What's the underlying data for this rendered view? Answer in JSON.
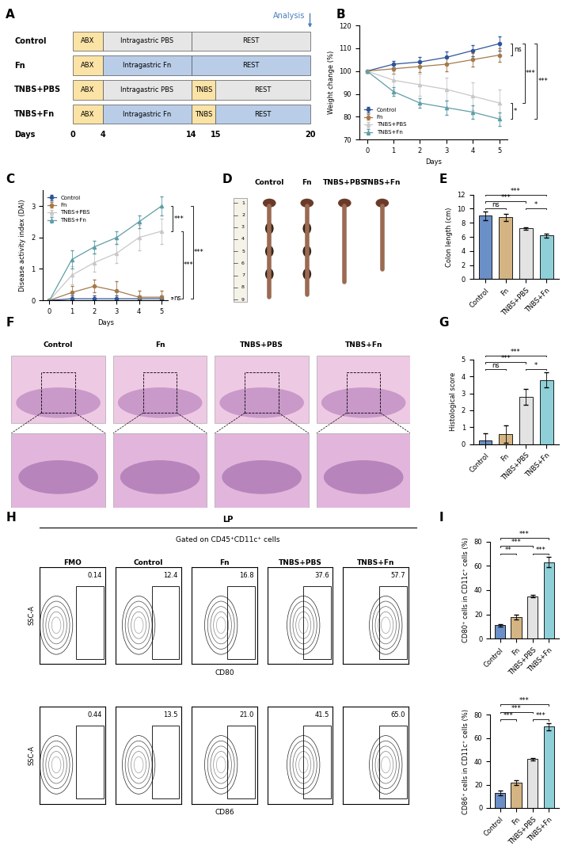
{
  "panel_A": {
    "label": "A",
    "axis_label": "Days",
    "ticks": [
      0,
      4,
      14,
      15,
      20
    ],
    "analysis": "Analysis",
    "rows": [
      {
        "name": "Control",
        "segments": [
          {
            "text": "ABX",
            "start": 0,
            "end": 4,
            "color": "#fbe3a6"
          },
          {
            "text": "Intragastric PBS",
            "start": 4,
            "end": 14,
            "color": "#e6e6e6"
          },
          {
            "text": "REST",
            "start": 14,
            "end": 20,
            "color": "#e6e6e6"
          }
        ]
      },
      {
        "name": "Fn",
        "segments": [
          {
            "text": "ABX",
            "start": 0,
            "end": 4,
            "color": "#fbe3a6"
          },
          {
            "text": "Intragastric Fn",
            "start": 4,
            "end": 14,
            "color": "#b9cde8"
          },
          {
            "text": "REST",
            "start": 14,
            "end": 20,
            "color": "#b9cde8"
          }
        ]
      },
      {
        "name": "TNBS+PBS",
        "segments": [
          {
            "text": "ABX",
            "start": 0,
            "end": 4,
            "color": "#fbe3a6"
          },
          {
            "text": "Intragastric PBS",
            "start": 4,
            "end": 14,
            "color": "#e6e6e6"
          },
          {
            "text": "TNBS",
            "start": 14,
            "end": 15,
            "color": "#fbe3a6"
          },
          {
            "text": "REST",
            "start": 15,
            "end": 20,
            "color": "#e6e6e6"
          }
        ]
      },
      {
        "name": "TNBS+Fn",
        "segments": [
          {
            "text": "ABX",
            "start": 0,
            "end": 4,
            "color": "#fbe3a6"
          },
          {
            "text": "Intragastric Fn",
            "start": 4,
            "end": 14,
            "color": "#b9cde8"
          },
          {
            "text": "TNBS",
            "start": 14,
            "end": 15,
            "color": "#fbe3a6"
          },
          {
            "text": "REST",
            "start": 15,
            "end": 20,
            "color": "#b9cde8"
          }
        ]
      }
    ]
  },
  "chart_data": [
    {
      "panel": "B",
      "type": "line",
      "x": [
        0,
        1,
        2,
        3,
        4,
        5
      ],
      "x_label": "Days",
      "y_label": "Weight change (%)",
      "xlim": [
        -0.3,
        5.3
      ],
      "xticks": [
        0,
        1,
        2,
        3,
        4,
        5
      ],
      "ylim": [
        70,
        120
      ],
      "yticks": [
        70,
        80,
        90,
        100,
        110,
        120
      ],
      "legend": "lower left",
      "series": [
        {
          "name": "Control",
          "color": "#2f5597",
          "marker": "circle",
          "values": [
            100,
            103,
            104,
            106,
            109,
            112
          ],
          "errors": [
            0,
            1.5,
            2,
            2.5,
            2.5,
            3
          ]
        },
        {
          "name": "Fn",
          "color": "#a47a4c",
          "marker": "circle",
          "values": [
            100,
            101,
            102,
            103,
            105,
            107
          ],
          "errors": [
            0,
            2,
            2.5,
            3,
            3,
            3
          ]
        },
        {
          "name": "TNBS+PBS",
          "color": "#c8c8c8",
          "marker": "triangle",
          "values": [
            100,
            96,
            94,
            92,
            89,
            86
          ],
          "errors": [
            0,
            4,
            5,
            5,
            6,
            6
          ]
        },
        {
          "name": "TNBS+Fn",
          "color": "#5f9ea8",
          "marker": "triangle",
          "values": [
            100,
            91,
            86,
            84,
            82,
            79
          ],
          "errors": [
            0,
            2,
            2,
            3,
            3,
            3
          ]
        }
      ],
      "annotations": [
        {
          "text": "ns",
          "between": [
            0,
            1
          ]
        },
        {
          "text": "*",
          "between": [
            2,
            3
          ]
        },
        {
          "text": "***",
          "between": [
            0,
            2
          ]
        },
        {
          "text": "***",
          "between": [
            0,
            3
          ]
        }
      ]
    },
    {
      "panel": "C",
      "type": "line",
      "x": [
        0,
        1,
        2,
        3,
        4,
        5
      ],
      "x_label": "Days",
      "y_label": "Disease activity index (DAI)",
      "xlim": [
        -0.3,
        5.3
      ],
      "xticks": [
        0,
        1,
        2,
        3,
        4,
        5
      ],
      "ylim": [
        0,
        3.5
      ],
      "yticks": [
        0,
        1,
        2,
        3
      ],
      "legend": "upper left",
      "series": [
        {
          "name": "Control",
          "color": "#2f5597",
          "marker": "circle",
          "values": [
            0,
            0.05,
            0.05,
            0.05,
            0.05,
            0.05
          ],
          "errors": [
            0,
            0.1,
            0.1,
            0.1,
            0.1,
            0.1
          ]
        },
        {
          "name": "Fn",
          "color": "#a47a4c",
          "marker": "circle",
          "values": [
            0,
            0.25,
            0.45,
            0.3,
            0.1,
            0.1
          ],
          "errors": [
            0,
            0.2,
            0.2,
            0.3,
            0.2,
            0.2
          ]
        },
        {
          "name": "TNBS+PBS",
          "color": "#c8c8c8",
          "marker": "triangle",
          "values": [
            0,
            0.8,
            1.2,
            1.5,
            2.0,
            2.2
          ],
          "errors": [
            0,
            0.3,
            0.3,
            0.3,
            0.4,
            0.4
          ]
        },
        {
          "name": "TNBS+Fn",
          "color": "#5f9ea8",
          "marker": "triangle",
          "values": [
            0,
            1.3,
            1.7,
            2.0,
            2.5,
            3.0
          ],
          "errors": [
            0,
            0.3,
            0.2,
            0.2,
            0.2,
            0.3
          ]
        }
      ],
      "annotations": [
        {
          "text": "ns",
          "between": [
            0,
            1
          ]
        },
        {
          "text": "***",
          "between": [
            2,
            3
          ]
        },
        {
          "text": "***",
          "between": [
            0,
            2
          ]
        },
        {
          "text": "***",
          "between": [
            0,
            3
          ]
        }
      ]
    },
    {
      "panel": "E",
      "type": "bar",
      "categories": [
        "Control",
        "Fn",
        "TNBS+PBS",
        "TNBS+Fn"
      ],
      "y_label": "Colon length (cm)",
      "ylim": [
        0,
        12
      ],
      "yticks": [
        0,
        2,
        4,
        6,
        8,
        10,
        12
      ],
      "colors": [
        "#6b8fc7",
        "#d4b483",
        "#e3e3e3",
        "#8ecfd8"
      ],
      "values": [
        9.0,
        8.8,
        7.2,
        6.2
      ],
      "errors": [
        0.6,
        0.5,
        0.2,
        0.3
      ],
      "annotations": [
        {
          "text": "ns",
          "between": [
            0,
            1
          ]
        },
        {
          "text": "*",
          "between": [
            2,
            3
          ]
        },
        {
          "text": "***",
          "between": [
            0,
            2
          ]
        },
        {
          "text": "***",
          "between": [
            0,
            3
          ]
        }
      ]
    },
    {
      "panel": "G",
      "type": "bar",
      "categories": [
        "Control",
        "Fn",
        "TNBS+PBS",
        "TNBS+Fn"
      ],
      "y_label": "Histological score",
      "ylim": [
        0,
        5
      ],
      "yticks": [
        0,
        1,
        2,
        3,
        4,
        5
      ],
      "colors": [
        "#6b8fc7",
        "#d4b483",
        "#e3e3e3",
        "#8ecfd8"
      ],
      "values": [
        0.2,
        0.6,
        2.8,
        3.8
      ],
      "errors": [
        0.45,
        0.5,
        0.45,
        0.45
      ],
      "annotations": [
        {
          "text": "ns",
          "between": [
            0,
            1
          ]
        },
        {
          "text": "*",
          "between": [
            2,
            3
          ]
        },
        {
          "text": "***",
          "between": [
            0,
            2
          ]
        },
        {
          "text": "***",
          "between": [
            0,
            3
          ]
        }
      ]
    },
    {
      "panel": "I",
      "type": "bar",
      "categories": [
        "Control",
        "Fn",
        "TNBS+PBS",
        "TNBS+Fn"
      ],
      "y_label": "CD80⁺ cells in CD11c⁺ cells (%)",
      "ylim": [
        0,
        80
      ],
      "yticks": [
        0,
        20,
        40,
        60,
        80
      ],
      "colors": [
        "#6b8fc7",
        "#d4b483",
        "#e3e3e3",
        "#8ecfd8"
      ],
      "values": [
        11,
        18,
        35,
        63
      ],
      "errors": [
        1,
        2,
        1,
        4
      ],
      "annotations": [
        {
          "text": "**",
          "between": [
            0,
            1
          ]
        },
        {
          "text": "***",
          "between": [
            2,
            3
          ]
        },
        {
          "text": "***",
          "between": [
            0,
            2
          ]
        },
        {
          "text": "***",
          "between": [
            0,
            3
          ]
        }
      ]
    },
    {
      "type": "bar",
      "categories": [
        "Control",
        "Fn",
        "TNBS+PBS",
        "TNBS+Fn"
      ],
      "y_label": "CD86⁺ cells in CD11c⁺ cells (%)",
      "ylim": [
        0,
        80
      ],
      "yticks": [
        0,
        20,
        40,
        60,
        80
      ],
      "colors": [
        "#6b8fc7",
        "#d4b483",
        "#e3e3e3",
        "#8ecfd8"
      ],
      "values": [
        13,
        22,
        42,
        70
      ],
      "errors": [
        2,
        2,
        1,
        3
      ],
      "annotations": [
        {
          "text": "***",
          "between": [
            0,
            1
          ]
        },
        {
          "text": "***",
          "between": [
            2,
            3
          ]
        },
        {
          "text": "***",
          "between": [
            0,
            2
          ]
        },
        {
          "text": "***",
          "between": [
            0,
            3
          ]
        }
      ]
    }
  ],
  "panel_D": {
    "label": "D",
    "samples": [
      "Control",
      "Fn",
      "TNBS+PBS",
      "TNBS+Fn"
    ],
    "ruler_ticks": [
      1,
      2,
      3,
      4,
      5,
      6,
      7,
      8,
      9
    ]
  },
  "panel_F": {
    "label": "F",
    "samples": [
      "Control",
      "Fn",
      "TNBS+PBS",
      "TNBS+Fn"
    ]
  },
  "panel_H": {
    "label": "H",
    "region": "LP",
    "gate": "Gated on CD45⁺CD11c⁺ cells",
    "y_label": "SSC-A",
    "columns": [
      "FMO",
      "Control",
      "Fn",
      "TNBS+PBS",
      "TNBS+Fn"
    ],
    "rows": [
      {
        "marker": "CD80",
        "gates": [
          "0.14",
          "12.4",
          "16.8",
          "37.6",
          "57.7"
        ]
      },
      {
        "marker": "CD86",
        "gates": [
          "0.44",
          "13.5",
          "21.0",
          "41.5",
          "65.0"
        ]
      }
    ]
  }
}
